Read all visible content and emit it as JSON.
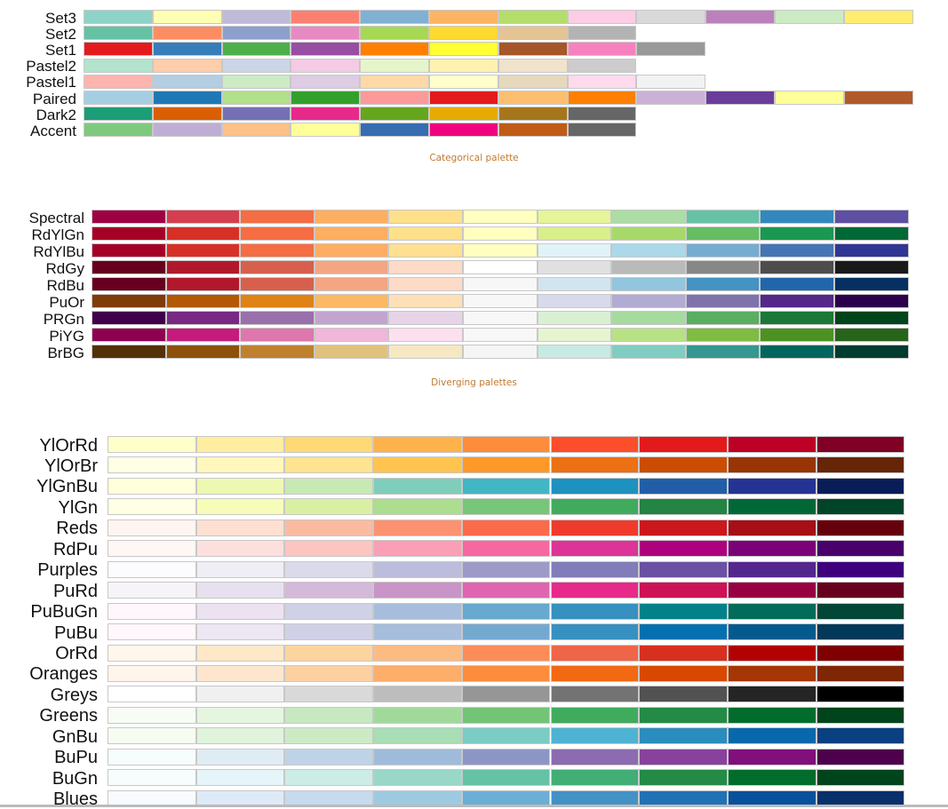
{
  "chart_data": [
    {
      "type": "table",
      "caption": "Categorical palette",
      "palettes": [
        {
          "name": "Set3",
          "colors": [
            "#8DD3C7",
            "#FFFFB3",
            "#BEBADA",
            "#FB8072",
            "#80B1D3",
            "#FDB462",
            "#B3DE69",
            "#FCCDE5",
            "#D9D9D9",
            "#BC80BD",
            "#CCEBC5",
            "#FFED6F"
          ]
        },
        {
          "name": "Set2",
          "colors": [
            "#66C2A5",
            "#FC8D62",
            "#8DA0CB",
            "#E78AC3",
            "#A6D854",
            "#FFD92F",
            "#E5C494",
            "#B3B3B3"
          ]
        },
        {
          "name": "Set1",
          "colors": [
            "#E41A1C",
            "#377EB8",
            "#4DAF4A",
            "#984EA3",
            "#FF7F00",
            "#FFFF33",
            "#A65628",
            "#F781BF",
            "#999999"
          ]
        },
        {
          "name": "Pastel2",
          "colors": [
            "#B3E2CD",
            "#FDCDAC",
            "#CBD5E8",
            "#F4CAE4",
            "#E6F5C9",
            "#FFF2AE",
            "#F1E2CC",
            "#CCCCCC"
          ]
        },
        {
          "name": "Pastel1",
          "colors": [
            "#FBB4AE",
            "#B3CDE3",
            "#CCEBC5",
            "#DECBE4",
            "#FED9A6",
            "#FFFFCC",
            "#E5D8BD",
            "#FDDAEC",
            "#F2F2F2"
          ]
        },
        {
          "name": "Paired",
          "colors": [
            "#A6CEE3",
            "#1F78B4",
            "#B2DF8A",
            "#33A02C",
            "#FB9A99",
            "#E31A1C",
            "#FDBF6F",
            "#FF7F00",
            "#CAB2D6",
            "#6A3D9A",
            "#FFFF99",
            "#B15928"
          ]
        },
        {
          "name": "Dark2",
          "colors": [
            "#1B9E77",
            "#D95F02",
            "#7570B3",
            "#E7298A",
            "#66A61E",
            "#E6AB02",
            "#A6761D",
            "#666666"
          ]
        },
        {
          "name": "Accent",
          "colors": [
            "#7FC97F",
            "#BEAED4",
            "#FDC086",
            "#FFFF99",
            "#386CB0",
            "#F0027F",
            "#BF5B17",
            "#666666"
          ]
        }
      ]
    },
    {
      "type": "table",
      "caption": "Diverging palettes",
      "palettes": [
        {
          "name": "Spectral",
          "colors": [
            "#9E0142",
            "#D53E4F",
            "#F46D43",
            "#FDAE61",
            "#FEE08B",
            "#FFFFBF",
            "#E6F598",
            "#ABDDA4",
            "#66C2A5",
            "#3288BD",
            "#5E4FA2"
          ]
        },
        {
          "name": "RdYlGn",
          "colors": [
            "#A50026",
            "#D73027",
            "#F46D43",
            "#FDAE61",
            "#FEE08B",
            "#FFFFBF",
            "#D9EF8B",
            "#A6D96A",
            "#66BD63",
            "#1A9850",
            "#006837"
          ]
        },
        {
          "name": "RdYlBu",
          "colors": [
            "#A50026",
            "#D73027",
            "#F46D43",
            "#FDAE61",
            "#FEE090",
            "#FFFFBF",
            "#E0F3F8",
            "#ABD9E9",
            "#74ADD1",
            "#4575B4",
            "#313695"
          ]
        },
        {
          "name": "RdGy",
          "colors": [
            "#67001F",
            "#B2182B",
            "#D6604D",
            "#F4A582",
            "#FDDBC7",
            "#FFFFFF",
            "#E0E0E0",
            "#BABABA",
            "#878787",
            "#4D4D4D",
            "#1A1A1A"
          ]
        },
        {
          "name": "RdBu",
          "colors": [
            "#67001F",
            "#B2182B",
            "#D6604D",
            "#F4A582",
            "#FDDBC7",
            "#F7F7F7",
            "#D1E5F0",
            "#92C5DE",
            "#4393C3",
            "#2166AC",
            "#053061"
          ]
        },
        {
          "name": "PuOr",
          "colors": [
            "#7F3B08",
            "#B35806",
            "#E08214",
            "#FDB863",
            "#FEE0B6",
            "#F7F7F7",
            "#D8DAEB",
            "#B2ABD2",
            "#8073AC",
            "#542788",
            "#2D004B"
          ]
        },
        {
          "name": "PRGn",
          "colors": [
            "#40004B",
            "#762A83",
            "#9970AB",
            "#C2A5CF",
            "#E7D4E8",
            "#F7F7F7",
            "#D9F0D3",
            "#A6DBA0",
            "#5AAE61",
            "#1B7837",
            "#00441B"
          ]
        },
        {
          "name": "PiYG",
          "colors": [
            "#8E0152",
            "#C51B7D",
            "#DE77AE",
            "#F1B6DA",
            "#FDE0EF",
            "#F7F7F7",
            "#E6F5D0",
            "#B8E186",
            "#7FBC41",
            "#4D9221",
            "#276419"
          ]
        },
        {
          "name": "BrBG",
          "colors": [
            "#543005",
            "#8C510A",
            "#BF812D",
            "#DFC27D",
            "#F6E8C3",
            "#F5F5F5",
            "#C7EAE5",
            "#80CDC1",
            "#35978F",
            "#01665E",
            "#003C30"
          ]
        }
      ]
    },
    {
      "type": "table",
      "caption": "",
      "palettes": [
        {
          "name": "YlOrRd",
          "colors": [
            "#FFFFCC",
            "#FFEDA0",
            "#FED976",
            "#FEB24C",
            "#FD8D3C",
            "#FC4E2A",
            "#E31A1C",
            "#BD0026",
            "#800026"
          ]
        },
        {
          "name": "YlOrBr",
          "colors": [
            "#FFFFE5",
            "#FFF7BC",
            "#FEE391",
            "#FEC44F",
            "#FE9929",
            "#EC7014",
            "#CC4C02",
            "#993404",
            "#662506"
          ]
        },
        {
          "name": "YlGnBu",
          "colors": [
            "#FFFFD9",
            "#EDF8B1",
            "#C7E9B4",
            "#7FCDBB",
            "#41B6C4",
            "#1D91C0",
            "#225EA8",
            "#253494",
            "#081D58"
          ]
        },
        {
          "name": "YlGn",
          "colors": [
            "#FFFFE5",
            "#F7FCB9",
            "#D9F0A3",
            "#ADDD8E",
            "#78C679",
            "#41AB5D",
            "#238443",
            "#006837",
            "#004529"
          ]
        },
        {
          "name": "Reds",
          "colors": [
            "#FFF5F0",
            "#FEE0D2",
            "#FCBBA1",
            "#FC9272",
            "#FB6A4A",
            "#EF3B2C",
            "#CB181D",
            "#A50F15",
            "#67000D"
          ]
        },
        {
          "name": "RdPu",
          "colors": [
            "#FFF7F3",
            "#FDE0DD",
            "#FCC5C0",
            "#FA9FB5",
            "#F768A1",
            "#DD3497",
            "#AE017E",
            "#7A0177",
            "#49006A"
          ]
        },
        {
          "name": "Purples",
          "colors": [
            "#FCFBFD",
            "#EFEDF5",
            "#DADAEB",
            "#BCBDDC",
            "#9E9AC8",
            "#807DBA",
            "#6A51A3",
            "#54278F",
            "#3F007D"
          ]
        },
        {
          "name": "PuRd",
          "colors": [
            "#F7F4F9",
            "#E7E1EF",
            "#D4B9DA",
            "#C994C7",
            "#DF65B0",
            "#E7298A",
            "#CE1256",
            "#980043",
            "#67001F"
          ]
        },
        {
          "name": "PuBuGn",
          "colors": [
            "#FFF7FB",
            "#ECE2F0",
            "#D0D1E6",
            "#A6BDDB",
            "#67A9CF",
            "#3690C0",
            "#02818A",
            "#016C59",
            "#014636"
          ]
        },
        {
          "name": "PuBu",
          "colors": [
            "#FFF7FB",
            "#ECE7F2",
            "#D0D1E6",
            "#A6BDDB",
            "#74A9CF",
            "#3690C0",
            "#0570B0",
            "#045A8D",
            "#023858"
          ]
        },
        {
          "name": "OrRd",
          "colors": [
            "#FFF7EC",
            "#FEE8C8",
            "#FDD49E",
            "#FDBB84",
            "#FC8D59",
            "#EF6548",
            "#D7301F",
            "#B30000",
            "#7F0000"
          ]
        },
        {
          "name": "Oranges",
          "colors": [
            "#FFF5EB",
            "#FEE6CE",
            "#FDD0A2",
            "#FDAE6B",
            "#FD8D3C",
            "#F16913",
            "#D94801",
            "#A63603",
            "#7F2704"
          ]
        },
        {
          "name": "Greys",
          "colors": [
            "#FFFFFF",
            "#F0F0F0",
            "#D9D9D9",
            "#BDBDBD",
            "#969696",
            "#737373",
            "#525252",
            "#252525",
            "#000000"
          ]
        },
        {
          "name": "Greens",
          "colors": [
            "#F7FCF5",
            "#E5F5E0",
            "#C7E9C0",
            "#A1D99B",
            "#74C476",
            "#41AB5D",
            "#238B45",
            "#006D2C",
            "#00441B"
          ]
        },
        {
          "name": "GnBu",
          "colors": [
            "#F7FCF0",
            "#E0F3DB",
            "#CCEBC5",
            "#A8DDB5",
            "#7BCCC4",
            "#4EB3D3",
            "#2B8CBE",
            "#0868AC",
            "#084081"
          ]
        },
        {
          "name": "BuPu",
          "colors": [
            "#F7FCFD",
            "#E0ECF4",
            "#BFD3E6",
            "#9EBCDA",
            "#8C96C6",
            "#8C6BB1",
            "#88419D",
            "#810F7C",
            "#4D004B"
          ]
        },
        {
          "name": "BuGn",
          "colors": [
            "#F7FCFD",
            "#E5F5F9",
            "#CCECE6",
            "#99D8C9",
            "#66C2A4",
            "#41AE76",
            "#238B45",
            "#006D2C",
            "#00441B"
          ]
        },
        {
          "name": "Blues",
          "colors": [
            "#F7FBFF",
            "#DEEBF7",
            "#C6DBEF",
            "#9ECAE1",
            "#6BAED6",
            "#4292C6",
            "#2171B5",
            "#08519C",
            "#08306B"
          ]
        }
      ]
    }
  ]
}
